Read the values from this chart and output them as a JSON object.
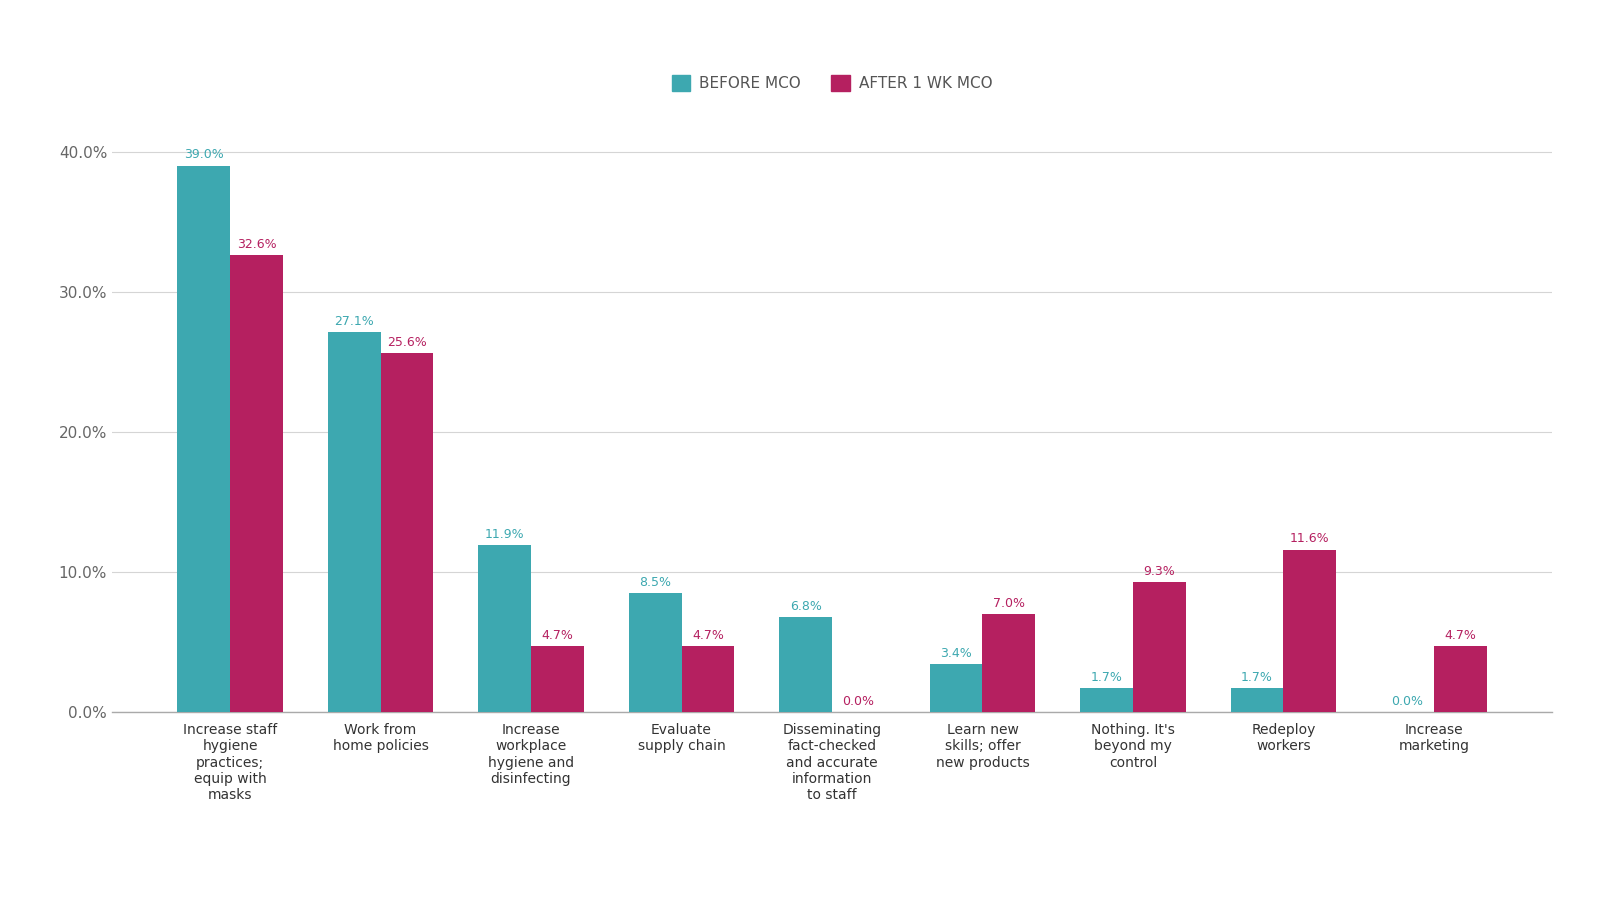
{
  "categories": [
    "Increase staff\nhygiene\npractices;\nequip with\nmasks",
    "Work from\nhome policies",
    "Increase\nworkplace\nhygiene and\ndisinfecting",
    "Evaluate\nsupply chain",
    "Disseminating\nfact-checked\nand accurate\ninformation\nto staff",
    "Learn new\nskills; offer\nnew products",
    "Nothing. It's\nbeyond my\ncontrol",
    "Redeploy\nworkers",
    "Increase\nmarketing"
  ],
  "before_mco": [
    39.0,
    27.1,
    11.9,
    8.5,
    6.8,
    3.4,
    1.7,
    1.7,
    0.0
  ],
  "after_mco": [
    32.6,
    25.6,
    4.7,
    4.7,
    0.0,
    7.0,
    9.3,
    11.6,
    4.7
  ],
  "before_color": "#3da8b0",
  "after_color": "#b52060",
  "ylim": [
    0,
    43
  ],
  "yticks": [
    0,
    10,
    20,
    30,
    40
  ],
  "ytick_labels": [
    "0.0%",
    "10.0%",
    "20.0%",
    "30.0%",
    "40.0%"
  ],
  "legend_before": "BEFORE MCO",
  "legend_after": "AFTER 1 WK MCO",
  "bar_width": 0.35,
  "background_color": "#ffffff"
}
